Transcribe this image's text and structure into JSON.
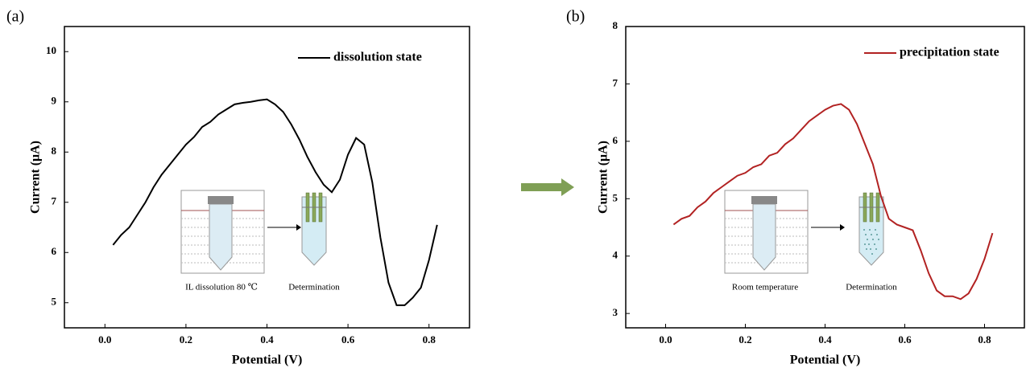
{
  "chart_data": [
    {
      "type": "line",
      "panel_label": "(a)",
      "x_label": "Potential (V)",
      "y_label": "Current (μA)",
      "xlim": [
        -0.1,
        0.9
      ],
      "ylim": [
        4.5,
        10.5
      ],
      "xticks": [
        {
          "value": 0,
          "label": "0.0"
        },
        0.2,
        0.4,
        0.6,
        0.8
      ],
      "yticks": [
        5,
        6,
        7,
        8,
        9,
        10
      ],
      "legend": "top-right",
      "annotations": [
        "IL dissolution 80 ℃",
        "Determination"
      ],
      "x": [
        0.02,
        0.04,
        0.06,
        0.08,
        0.1,
        0.12,
        0.14,
        0.16,
        0.18,
        0.2,
        0.22,
        0.24,
        0.26,
        0.28,
        0.3,
        0.32,
        0.34,
        0.36,
        0.38,
        0.4,
        0.42,
        0.44,
        0.46,
        0.48,
        0.5,
        0.52,
        0.54,
        0.56,
        0.58,
        0.6,
        0.62,
        0.64,
        0.66,
        0.68,
        0.7,
        0.72,
        0.74,
        0.76,
        0.78,
        0.8,
        0.82
      ],
      "series": [
        {
          "name": "dissolution state",
          "color": "#000000",
          "values": [
            6.15,
            6.35,
            6.5,
            6.75,
            7.0,
            7.3,
            7.55,
            7.75,
            7.95,
            8.15,
            8.3,
            8.5,
            8.6,
            8.75,
            8.85,
            8.95,
            8.98,
            9.0,
            9.03,
            9.05,
            8.95,
            8.8,
            8.55,
            8.25,
            7.9,
            7.6,
            7.35,
            7.2,
            7.45,
            7.95,
            8.28,
            8.15,
            7.4,
            6.3,
            5.4,
            4.95,
            4.95,
            5.1,
            5.3,
            5.85,
            6.55
          ]
        }
      ]
    },
    {
      "type": "line",
      "panel_label": "(b)",
      "x_label": "Potential (V)",
      "y_label": "Current (μA)",
      "xlim": [
        -0.1,
        0.9
      ],
      "ylim": [
        2.75,
        8
      ],
      "xticks": [
        {
          "value": 0,
          "label": "0.0"
        },
        0.2,
        0.4,
        0.6,
        0.8
      ],
      "yticks": [
        3,
        4,
        5,
        6,
        7,
        8
      ],
      "legend": "top-right",
      "annotations": [
        "Room temperature",
        "Determination"
      ],
      "x": [
        0.02,
        0.04,
        0.06,
        0.08,
        0.1,
        0.12,
        0.14,
        0.16,
        0.18,
        0.2,
        0.22,
        0.24,
        0.26,
        0.28,
        0.3,
        0.32,
        0.34,
        0.36,
        0.38,
        0.4,
        0.42,
        0.44,
        0.46,
        0.48,
        0.5,
        0.52,
        0.54,
        0.56,
        0.58,
        0.6,
        0.62,
        0.64,
        0.66,
        0.68,
        0.7,
        0.72,
        0.74,
        0.76,
        0.78,
        0.8,
        0.82
      ],
      "series": [
        {
          "name": "precipitation state",
          "color": "#b22222",
          "values": [
            4.55,
            4.65,
            4.7,
            4.85,
            4.95,
            5.1,
            5.2,
            5.3,
            5.4,
            5.45,
            5.55,
            5.6,
            5.75,
            5.8,
            5.95,
            6.05,
            6.2,
            6.35,
            6.45,
            6.55,
            6.62,
            6.65,
            6.55,
            6.3,
            5.95,
            5.6,
            5.05,
            4.65,
            4.55,
            4.5,
            4.45,
            4.1,
            3.7,
            3.4,
            3.3,
            3.3,
            3.25,
            3.35,
            3.6,
            3.95,
            4.4
          ]
        }
      ]
    }
  ]
}
